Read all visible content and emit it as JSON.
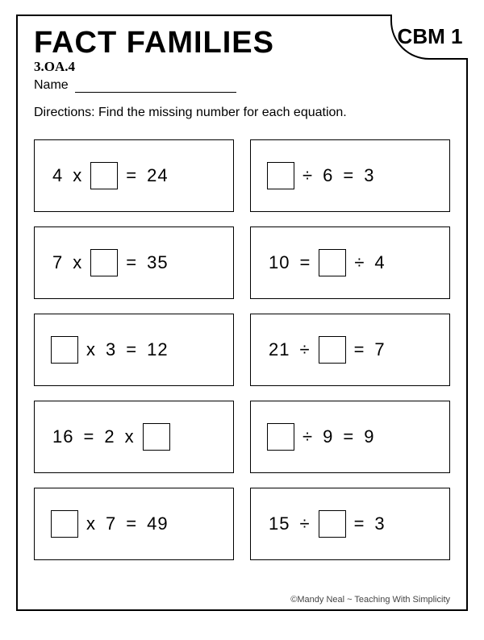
{
  "title": "FACT FAMILIES",
  "badge": "CBM 1",
  "standard": "3.OA.4",
  "name_label": "Name",
  "directions": "Directions:  Find the missing number for each equation.",
  "colors": {
    "border": "#000000",
    "background": "#ffffff",
    "text": "#000000"
  },
  "equations": [
    {
      "parts": [
        "4",
        "x",
        "[BLANK]",
        "=",
        "24"
      ]
    },
    {
      "parts": [
        "[BLANK]",
        "÷",
        "6",
        "=",
        "3"
      ]
    },
    {
      "parts": [
        "7",
        "x",
        "[BLANK]",
        "=",
        "35"
      ]
    },
    {
      "parts": [
        "10",
        "=",
        "[BLANK]",
        "÷",
        "4"
      ]
    },
    {
      "parts": [
        "[BLANK]",
        "x",
        "3",
        "=",
        "12"
      ]
    },
    {
      "parts": [
        "21",
        "÷",
        "[BLANK]",
        "=",
        "7"
      ]
    },
    {
      "parts": [
        "16",
        "=",
        "2",
        "x",
        "[BLANK]"
      ]
    },
    {
      "parts": [
        "[BLANK]",
        "÷",
        "9",
        "=",
        "9"
      ]
    },
    {
      "parts": [
        "[BLANK]",
        "x",
        "7",
        "=",
        "49"
      ]
    },
    {
      "parts": [
        "15",
        "÷",
        "[BLANK]",
        "=",
        "3"
      ]
    }
  ],
  "footer": "©Mandy Neal ~ Teaching With Simplicity"
}
